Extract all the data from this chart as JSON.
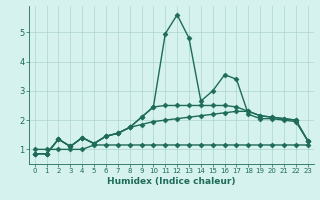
{
  "xlabel": "Humidex (Indice chaleur)",
  "xlim": [
    -0.5,
    23.5
  ],
  "ylim": [
    0.5,
    5.9
  ],
  "xticks": [
    0,
    1,
    2,
    3,
    4,
    5,
    6,
    7,
    8,
    9,
    10,
    11,
    12,
    13,
    14,
    15,
    16,
    17,
    18,
    19,
    20,
    21,
    22,
    23
  ],
  "yticks": [
    1,
    2,
    3,
    4,
    5
  ],
  "background_color": "#d6f2ee",
  "grid_color": "#aed4cc",
  "line_color": "#1e6b5a",
  "series": [
    [
      0.85,
      0.85,
      1.35,
      1.1,
      1.4,
      1.2,
      1.45,
      1.55,
      1.75,
      2.1,
      2.45,
      4.95,
      5.6,
      4.8,
      2.65,
      3.0,
      3.55,
      3.4,
      2.2,
      2.05,
      2.05,
      2.0,
      1.95,
      1.3
    ],
    [
      0.85,
      0.85,
      1.35,
      1.1,
      1.4,
      1.2,
      1.45,
      1.55,
      1.75,
      2.1,
      2.45,
      2.5,
      2.5,
      2.5,
      2.5,
      2.5,
      2.5,
      2.45,
      2.3,
      2.15,
      2.1,
      2.05,
      2.0,
      1.3
    ],
    [
      0.85,
      0.85,
      1.35,
      1.1,
      1.4,
      1.2,
      1.45,
      1.55,
      1.75,
      1.85,
      1.95,
      2.0,
      2.05,
      2.1,
      2.15,
      2.2,
      2.25,
      2.3,
      2.3,
      2.15,
      2.1,
      2.05,
      2.0,
      1.3
    ],
    [
      1.0,
      1.0,
      1.0,
      1.0,
      1.0,
      1.15,
      1.15,
      1.15,
      1.15,
      1.15,
      1.15,
      1.15,
      1.15,
      1.15,
      1.15,
      1.15,
      1.15,
      1.15,
      1.15,
      1.15,
      1.15,
      1.15,
      1.15,
      1.15
    ]
  ],
  "marker": "D",
  "markersize": 2.5,
  "linewidth": 1.0
}
